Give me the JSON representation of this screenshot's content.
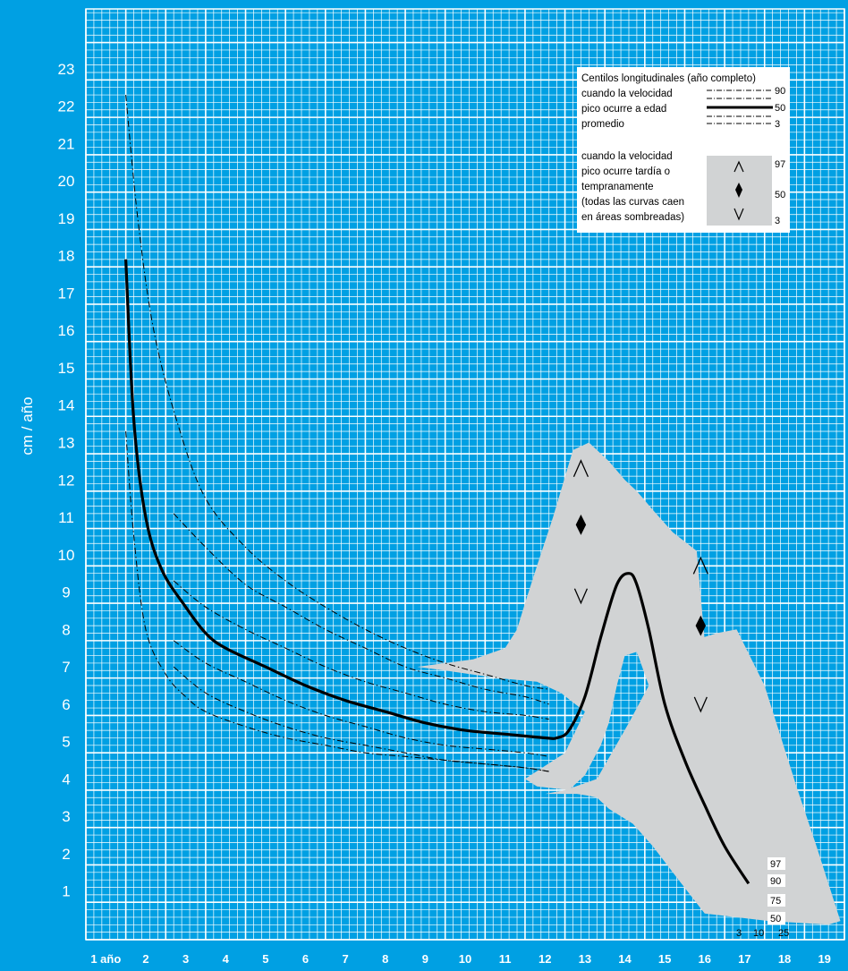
{
  "chart_data": {
    "type": "line",
    "ylabel": "cm / año",
    "y_ticks": [
      "1",
      "2",
      "3",
      "4",
      "5",
      "6",
      "7",
      "8",
      "9",
      "10",
      "11",
      "12",
      "13",
      "14",
      "15",
      "16",
      "17",
      "18",
      "19",
      "20",
      "21",
      "22",
      "23"
    ],
    "x_ticks": [
      "1 año",
      "2",
      "3",
      "4",
      "5",
      "6",
      "7",
      "8",
      "9",
      "10",
      "11",
      "12",
      "13",
      "14",
      "15",
      "16",
      "17",
      "18",
      "19"
    ],
    "xlim": [
      0.5,
      19.5
    ],
    "ylim": [
      -0.3,
      24.6
    ],
    "grid": true,
    "legend": {
      "title": "Centilos longitudinales (año completo)",
      "block1_lines": [
        "cuando la velocidad",
        "pico ocurre a edad",
        "promedio"
      ],
      "block1_keys": [
        "90",
        "50",
        "3"
      ],
      "block2_lines": [
        "cuando la velocidad",
        "pico ocurre tardía o",
        "tempranamente",
        "(todas las curvas caen",
        "en áreas sombreadas)"
      ],
      "block2_keys": [
        "97",
        "50",
        "3"
      ]
    },
    "end_labels_right": [
      "97",
      "90",
      "75",
      "50"
    ],
    "end_labels_bottom": [
      "3",
      "10",
      "25"
    ],
    "series": [
      {
        "name": "50",
        "x": [
          1.5,
          1.7,
          2,
          2.4,
          3,
          3.5,
          4,
          5,
          6,
          7,
          8,
          9,
          10,
          11,
          12,
          12.3,
          12.6,
          13,
          13.4,
          13.8,
          14.1,
          14.3,
          14.6,
          15,
          15.5,
          16,
          16.5,
          17.1
        ],
        "y": [
          17.9,
          13.6,
          11.0,
          9.6,
          8.6,
          7.9,
          7.5,
          7.0,
          6.5,
          6.1,
          5.8,
          5.5,
          5.3,
          5.2,
          5.1,
          5.1,
          5.3,
          6.2,
          7.8,
          9.2,
          9.5,
          9.2,
          8.0,
          6.0,
          4.5,
          3.3,
          2.2,
          1.2
        ]
      },
      {
        "name": "97",
        "x": [
          1.5,
          1.8,
          2.2,
          2.8,
          3.5,
          4.5,
          5.5,
          6.5,
          7.5,
          8.5,
          9.5,
          10.5,
          11.5,
          12.1
        ],
        "y": [
          22.3,
          19.0,
          16.0,
          13.5,
          11.5,
          10.2,
          9.3,
          8.6,
          8.0,
          7.5,
          7.1,
          6.8,
          6.5,
          6.4
        ]
      },
      {
        "name": "90",
        "x": [
          2.7,
          3.5,
          4.5,
          5.5,
          6.5,
          7.5,
          8.5,
          9.5,
          10.5,
          11.5,
          12.1
        ],
        "y": [
          11.1,
          10.2,
          9.2,
          8.6,
          8.0,
          7.5,
          7.0,
          6.7,
          6.4,
          6.2,
          6.0
        ]
      },
      {
        "name": "75",
        "x": [
          2.7,
          3.5,
          4.5,
          5.5,
          6.5,
          7.5,
          8.5,
          9.5,
          10.5,
          11.5,
          12.1
        ],
        "y": [
          9.3,
          8.6,
          8.0,
          7.5,
          7.0,
          6.6,
          6.3,
          6.0,
          5.8,
          5.7,
          5.6
        ]
      },
      {
        "name": "25",
        "x": [
          2.7,
          3.5,
          4.5,
          5.5,
          6.5,
          7.5,
          8.5,
          9.5,
          10.5,
          11.5,
          12.1
        ],
        "y": [
          7.7,
          7.1,
          6.6,
          6.1,
          5.7,
          5.4,
          5.1,
          4.9,
          4.8,
          4.7,
          4.6
        ]
      },
      {
        "name": "10",
        "x": [
          2.7,
          3.5,
          4.5,
          5.5,
          6.5,
          7.5,
          8.5,
          9.5,
          10.5,
          11.5,
          12.1
        ],
        "y": [
          7.0,
          6.3,
          5.8,
          5.4,
          5.1,
          4.9,
          4.7,
          4.5,
          4.4,
          4.3,
          4.2
        ]
      },
      {
        "name": "3",
        "x": [
          1.5,
          1.7,
          2.0,
          2.5,
          3.0,
          3.5,
          4.5,
          5.5,
          6.5,
          7.5,
          8.5,
          9.5,
          10.5,
          11.5,
          12.1
        ],
        "y": [
          13.3,
          10.5,
          8.0,
          6.8,
          6.2,
          5.8,
          5.4,
          5.1,
          4.9,
          4.7,
          4.6,
          4.5,
          4.4,
          4.3,
          4.2
        ]
      }
    ],
    "shaded_regions": [
      {
        "name": "early",
        "x": [
          8.8,
          10.2,
          11.0,
          11.3,
          11.5,
          11.8,
          12.2,
          12.7,
          13.1,
          13.6,
          14.0,
          14.3,
          14.7,
          15.2,
          15.8,
          16.6,
          16.8,
          15.8,
          15.5,
          15.2,
          14.9,
          14.6,
          14.3,
          14.0,
          13.8,
          13.6,
          13.4,
          13.0,
          12.6,
          11.8,
          11.5,
          12.5,
          13.0,
          12.4,
          11.8,
          10.8,
          9.5
        ],
        "y": [
          7.0,
          7.2,
          7.5,
          8.0,
          8.7,
          9.7,
          11.0,
          12.8,
          13.0,
          12.5,
          12.0,
          11.7,
          11.2,
          10.6,
          10.1,
          0.5,
          0.3,
          1.0,
          2.4,
          3.9,
          5.3,
          6.5,
          7.4,
          7.3,
          6.5,
          5.5,
          4.9,
          4.1,
          3.7,
          3.8,
          4.0,
          4.7,
          5.8,
          6.3,
          6.6,
          6.7,
          6.9
        ]
      },
      {
        "name": "late",
        "x": [
          12.0,
          12.5,
          13.3,
          14.1,
          14.6,
          15.1,
          15.7,
          16.3,
          16.8,
          17.5,
          18.3,
          18.8,
          19.1,
          19.4,
          19.1,
          17.6,
          16.0,
          15.2,
          14.7,
          14.2,
          13.6,
          13.3,
          13.1,
          12.8,
          12.3
        ],
        "y": [
          3.6,
          3.7,
          4.0,
          5.5,
          6.5,
          7.3,
          7.7,
          7.9,
          8.0,
          6.5,
          3.8,
          2.2,
          1.2,
          0.2,
          0.1,
          0.2,
          0.4,
          1.5,
          2.2,
          2.8,
          3.2,
          3.5,
          3.55,
          3.6,
          3.6
        ]
      }
    ],
    "markers": [
      {
        "symbol": "up",
        "x": 12.9,
        "y": 12.3
      },
      {
        "symbol": "diamond",
        "x": 12.9,
        "y": 10.8
      },
      {
        "symbol": "down",
        "x": 12.9,
        "y": 8.9
      },
      {
        "symbol": "up",
        "x": 15.9,
        "y": 9.7
      },
      {
        "symbol": "diamond",
        "x": 15.9,
        "y": 8.1
      },
      {
        "symbol": "down",
        "x": 15.9,
        "y": 6.0
      }
    ]
  },
  "colors": {
    "background": "#00a0e3",
    "grid_line": "#ffffff",
    "shade": "#d1d3d4",
    "curve": "#000000",
    "legend_bg": "#ffffff"
  }
}
